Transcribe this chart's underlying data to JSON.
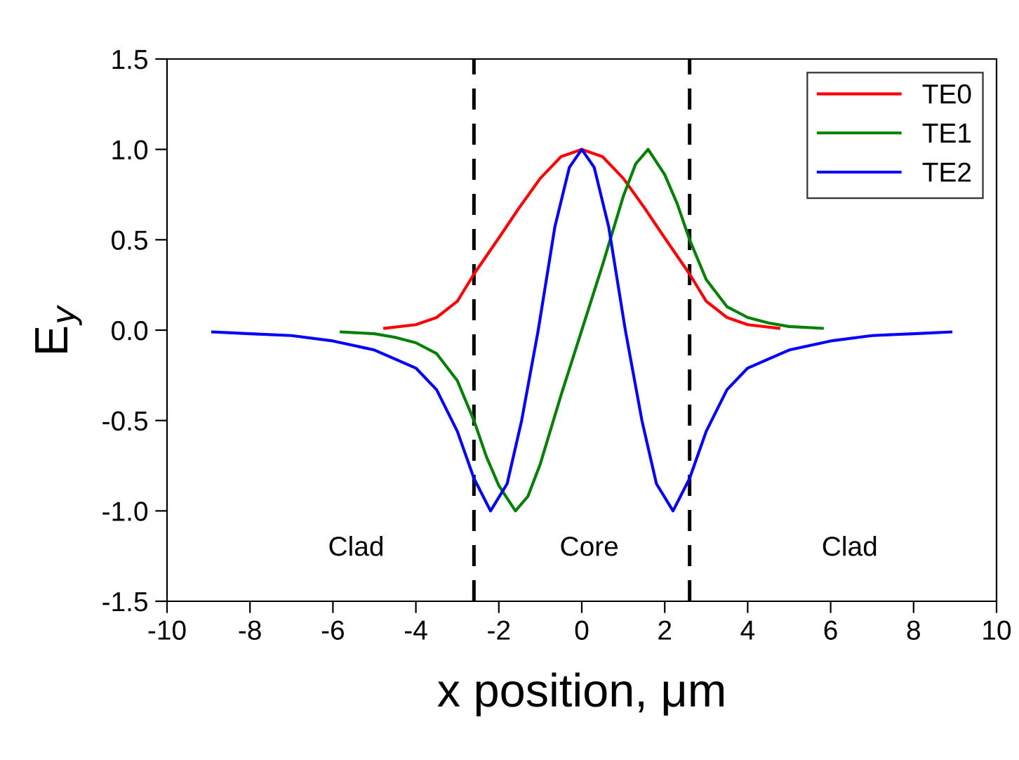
{
  "chart_data": {
    "type": "line",
    "xlabel": "x position, μm",
    "ylabel": "E$_{y}$",
    "xlim": [
      -10,
      10
    ],
    "xticks": [
      -10,
      -8,
      -6,
      -4,
      -2,
      0,
      2,
      4,
      6,
      8,
      10
    ],
    "ylim": [
      -1.5,
      1.5
    ],
    "yticks": [
      {
        "value": -1.5,
        "label": "-1.5"
      },
      {
        "value": -1.0,
        "label": "-1.0"
      },
      {
        "value": -0.5,
        "label": "-0.5"
      },
      {
        "value": 0.0,
        "label": "0.0"
      },
      {
        "value": 0.5,
        "label": "0.5"
      },
      {
        "value": 1.0,
        "label": "1.0"
      },
      {
        "value": 1.5,
        "label": "1.5"
      }
    ],
    "grid": false,
    "legend": "top right",
    "marker": "none",
    "line_style": "solid",
    "series": [
      {
        "name": "TE0",
        "color": "#ff0000",
        "x": [
          -4.75,
          -4,
          -3.5,
          -3,
          -2.6,
          -2,
          -1.5,
          -1,
          -0.5,
          0,
          0.5,
          1,
          1.5,
          2,
          2.6,
          3,
          3.5,
          4,
          4.75
        ],
        "values": [
          0.01,
          0.03,
          0.07,
          0.16,
          0.31,
          0.51,
          0.68,
          0.84,
          0.96,
          1.0,
          0.96,
          0.84,
          0.68,
          0.51,
          0.31,
          0.16,
          0.07,
          0.03,
          0.01
        ]
      },
      {
        "name": "TE1",
        "color": "#008000",
        "x": [
          -5.8,
          -5,
          -4.5,
          -4,
          -3.5,
          -3,
          -2.6,
          -2.3,
          -2,
          -1.6,
          -1.3,
          -1,
          -0.5,
          0,
          0.5,
          1,
          1.3,
          1.6,
          2,
          2.3,
          2.6,
          3,
          3.5,
          4,
          4.5,
          5,
          5.8
        ],
        "values": [
          -0.01,
          -0.02,
          -0.04,
          -0.07,
          -0.13,
          -0.28,
          -0.5,
          -0.7,
          -0.86,
          -1.0,
          -0.92,
          -0.74,
          -0.36,
          0.0,
          0.36,
          0.74,
          0.92,
          1.0,
          0.86,
          0.7,
          0.5,
          0.28,
          0.13,
          0.07,
          0.04,
          0.02,
          0.01
        ]
      },
      {
        "name": "TE2",
        "color": "#0000ff",
        "x": [
          -8.9,
          -8,
          -7,
          -6,
          -5,
          -4,
          -3.5,
          -3,
          -2.6,
          -2.2,
          -1.8,
          -1.45,
          -1.05,
          -0.65,
          -0.3,
          0,
          0.3,
          0.65,
          1.05,
          1.45,
          1.8,
          2.2,
          2.6,
          3,
          3.5,
          4,
          5,
          6,
          7,
          8,
          8.9
        ],
        "values": [
          -0.01,
          -0.02,
          -0.03,
          -0.06,
          -0.11,
          -0.21,
          -0.33,
          -0.56,
          -0.82,
          -1.0,
          -0.85,
          -0.5,
          0.0,
          0.57,
          0.9,
          1.0,
          0.9,
          0.57,
          0.0,
          -0.5,
          -0.85,
          -1.0,
          -0.82,
          -0.56,
          -0.33,
          -0.21,
          -0.11,
          -0.06,
          -0.03,
          -0.02,
          -0.01
        ]
      }
    ],
    "ref_lines": [
      {
        "axis": "x",
        "value": -2.6,
        "color": "#000000",
        "line_style": "dashed"
      },
      {
        "axis": "x",
        "value": 2.6,
        "color": "#000000",
        "line_style": "dashed"
      }
    ],
    "annotations": [
      "Clad",
      "Core",
      "Clad"
    ]
  }
}
